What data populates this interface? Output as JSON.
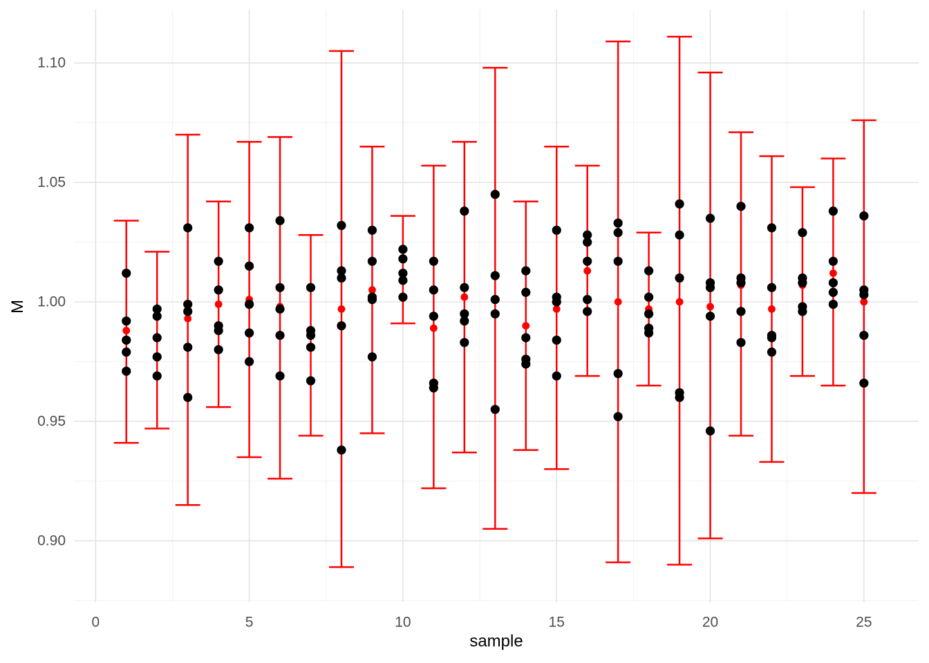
{
  "chart_data": {
    "type": "pointrange",
    "title": "",
    "xlabel": "sample",
    "ylabel": "M",
    "x_ticks": [
      0,
      5,
      10,
      15,
      20,
      25
    ],
    "x_minor_ticks": [
      2.5,
      7.5,
      12.5,
      17.5,
      22.5
    ],
    "y_ticks": [
      1.1,
      1.05,
      1.0,
      0.95,
      0.9
    ],
    "y_tick_labels": [
      "1.10",
      "1.05",
      "1.00",
      "0.95",
      "0.90"
    ],
    "y_minor_ticks": [
      0.875,
      0.925,
      0.975,
      1.025,
      1.075
    ],
    "xlim": [
      -0.704,
      26.78
    ],
    "ylim": [
      0.8743,
      1.1223
    ],
    "grid": "on",
    "legend": "none",
    "colors": {
      "interval": "#FF0000",
      "mean_point": "#FF0000",
      "data_point": "#000000",
      "grid_major": "#E3E3E3",
      "grid_minor": "#F0F0F0",
      "tick_text": "#4D4D4D",
      "axis_title_text": "#000000",
      "background": "#FFFFFF"
    },
    "samples": [
      {
        "x": 1,
        "lower": 0.941,
        "upper": 1.034,
        "mean": 0.988,
        "points": [
          1.012,
          0.992,
          0.984,
          0.979,
          0.971
        ]
      },
      {
        "x": 2,
        "lower": 0.947,
        "upper": 1.021,
        "mean": 0.985,
        "points": [
          0.997,
          0.994,
          0.985,
          0.977,
          0.969
        ]
      },
      {
        "x": 3,
        "lower": 0.915,
        "upper": 1.07,
        "mean": 0.993,
        "points": [
          1.031,
          0.999,
          0.996,
          0.981,
          0.96
        ]
      },
      {
        "x": 4,
        "lower": 0.956,
        "upper": 1.042,
        "mean": 0.999,
        "points": [
          1.017,
          1.005,
          0.99,
          0.988,
          0.98
        ]
      },
      {
        "x": 5,
        "lower": 0.935,
        "upper": 1.067,
        "mean": 1.001,
        "points": [
          1.031,
          1.015,
          0.999,
          0.987,
          0.975
        ]
      },
      {
        "x": 6,
        "lower": 0.926,
        "upper": 1.069,
        "mean": 0.998,
        "points": [
          1.034,
          1.006,
          0.997,
          0.986,
          0.969
        ]
      },
      {
        "x": 7,
        "lower": 0.944,
        "upper": 1.028,
        "mean": 0.986,
        "points": [
          1.006,
          0.988,
          0.986,
          0.981,
          0.967
        ]
      },
      {
        "x": 8,
        "lower": 0.889,
        "upper": 1.105,
        "mean": 0.997,
        "points": [
          1.032,
          1.013,
          1.01,
          0.99,
          0.938
        ]
      },
      {
        "x": 9,
        "lower": 0.945,
        "upper": 1.065,
        "mean": 1.005,
        "points": [
          1.03,
          1.017,
          1.002,
          1.001,
          0.977
        ]
      },
      {
        "x": 10,
        "lower": 0.991,
        "upper": 1.036,
        "mean": 1.012,
        "points": [
          1.022,
          1.018,
          1.012,
          1.009,
          1.002
        ]
      },
      {
        "x": 11,
        "lower": 0.922,
        "upper": 1.057,
        "mean": 0.989,
        "points": [
          1.017,
          1.005,
          0.994,
          0.966,
          0.964
        ]
      },
      {
        "x": 12,
        "lower": 0.937,
        "upper": 1.067,
        "mean": 1.002,
        "points": [
          1.038,
          1.006,
          0.995,
          0.992,
          0.983
        ]
      },
      {
        "x": 13,
        "lower": 0.905,
        "upper": 1.098,
        "mean": 1.001,
        "points": [
          1.045,
          1.011,
          1.001,
          0.995,
          0.955
        ]
      },
      {
        "x": 14,
        "lower": 0.938,
        "upper": 1.042,
        "mean": 0.99,
        "points": [
          1.013,
          1.004,
          0.985,
          0.976,
          0.974
        ]
      },
      {
        "x": 15,
        "lower": 0.93,
        "upper": 1.065,
        "mean": 0.997,
        "points": [
          1.03,
          1.002,
          1.0,
          0.984,
          0.969
        ]
      },
      {
        "x": 16,
        "lower": 0.969,
        "upper": 1.057,
        "mean": 1.013,
        "points": [
          1.028,
          1.025,
          1.017,
          1.001,
          0.996
        ]
      },
      {
        "x": 17,
        "lower": 0.891,
        "upper": 1.109,
        "mean": 1.0,
        "points": [
          1.033,
          1.029,
          1.017,
          0.97,
          0.952
        ]
      },
      {
        "x": 18,
        "lower": 0.965,
        "upper": 1.029,
        "mean": 0.997,
        "points": [
          1.013,
          1.002,
          0.995,
          0.989,
          0.987
        ]
      },
      {
        "x": 19,
        "lower": 0.89,
        "upper": 1.111,
        "mean": 1.0,
        "points": [
          1.041,
          1.028,
          1.01,
          0.962,
          0.96
        ]
      },
      {
        "x": 20,
        "lower": 0.901,
        "upper": 1.096,
        "mean": 0.998,
        "points": [
          1.035,
          1.008,
          1.006,
          0.994,
          0.946
        ]
      },
      {
        "x": 21,
        "lower": 0.944,
        "upper": 1.071,
        "mean": 1.007,
        "points": [
          1.04,
          1.01,
          1.008,
          0.996,
          0.983
        ]
      },
      {
        "x": 22,
        "lower": 0.933,
        "upper": 1.061,
        "mean": 0.997,
        "points": [
          1.031,
          1.006,
          0.986,
          0.985,
          0.979
        ]
      },
      {
        "x": 23,
        "lower": 0.969,
        "upper": 1.048,
        "mean": 1.007,
        "points": [
          1.029,
          1.01,
          1.008,
          0.998,
          0.996
        ]
      },
      {
        "x": 24,
        "lower": 0.965,
        "upper": 1.06,
        "mean": 1.012,
        "points": [
          1.038,
          1.017,
          1.008,
          1.004,
          0.999
        ]
      },
      {
        "x": 25,
        "lower": 0.92,
        "upper": 1.076,
        "mean": 1.0,
        "points": [
          1.036,
          1.005,
          1.003,
          0.986,
          0.966
        ]
      }
    ]
  }
}
